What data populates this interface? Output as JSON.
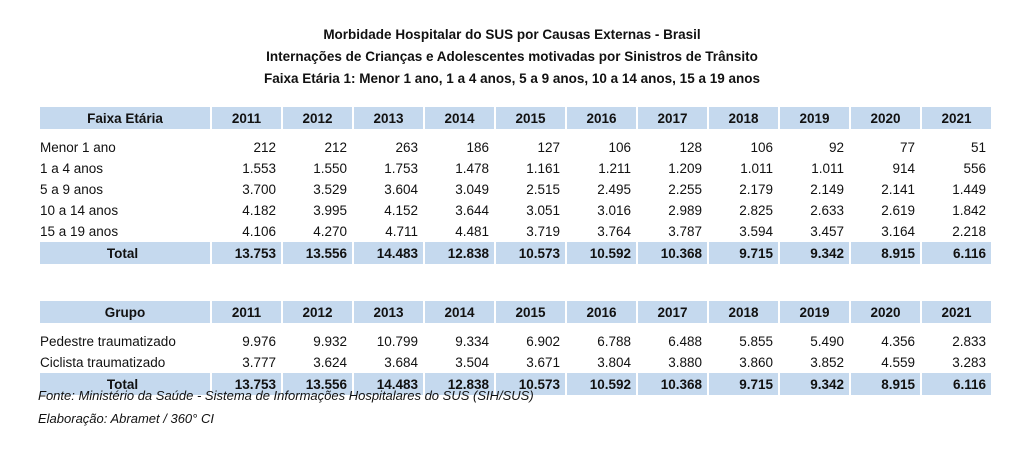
{
  "title": {
    "line1": "Morbidade Hospitalar do SUS por Causas Externas - Brasil",
    "line2": "Internações de Crianças e Adolescentes motivadas por Sinistros de Trânsito",
    "line3": "Faixa Etária 1: Menor 1 ano, 1 a 4 anos, 5 a 9 anos, 10 a 14 anos, 15 a 19 anos"
  },
  "table_age": {
    "header": [
      "Faixa Etária",
      "2011",
      "2012",
      "2013",
      "2014",
      "2015",
      "2016",
      "2017",
      "2018",
      "2019",
      "2020",
      "2021"
    ],
    "rows": [
      [
        "Menor 1 ano",
        "212",
        "212",
        "263",
        "186",
        "127",
        "106",
        "128",
        "106",
        "92",
        "77",
        "51"
      ],
      [
        "1 a 4 anos",
        "1.553",
        "1.550",
        "1.753",
        "1.478",
        "1.161",
        "1.211",
        "1.209",
        "1.011",
        "1.011",
        "914",
        "556"
      ],
      [
        "5 a 9 anos",
        "3.700",
        "3.529",
        "3.604",
        "3.049",
        "2.515",
        "2.495",
        "2.255",
        "2.179",
        "2.149",
        "2.141",
        "1.449"
      ],
      [
        "10 a 14 anos",
        "4.182",
        "3.995",
        "4.152",
        "3.644",
        "3.051",
        "3.016",
        "2.989",
        "2.825",
        "2.633",
        "2.619",
        "1.842"
      ],
      [
        "15 a 19 anos",
        "4.106",
        "4.270",
        "4.711",
        "4.481",
        "3.719",
        "3.764",
        "3.787",
        "3.594",
        "3.457",
        "3.164",
        "2.218"
      ]
    ],
    "total": [
      "Total",
      "13.753",
      "13.556",
      "14.483",
      "12.838",
      "10.573",
      "10.592",
      "10.368",
      "9.715",
      "9.342",
      "8.915",
      "6.116"
    ]
  },
  "table_group": {
    "header": [
      "Grupo",
      "2011",
      "2012",
      "2013",
      "2014",
      "2015",
      "2016",
      "2017",
      "2018",
      "2019",
      "2020",
      "2021"
    ],
    "rows": [
      [
        "Pedestre traumatizado",
        "9.976",
        "9.932",
        "10.799",
        "9.334",
        "6.902",
        "6.788",
        "6.488",
        "5.855",
        "5.490",
        "4.356",
        "2.833"
      ],
      [
        "Ciclista traumatizado",
        "3.777",
        "3.624",
        "3.684",
        "3.504",
        "3.671",
        "3.804",
        "3.880",
        "3.860",
        "3.852",
        "4.559",
        "3.283"
      ]
    ],
    "total": [
      "Total",
      "13.753",
      "13.556",
      "14.483",
      "12.838",
      "10.573",
      "10.592",
      "10.368",
      "9.715",
      "9.342",
      "8.915",
      "6.116"
    ]
  },
  "notes": {
    "source": "Fonte: Ministério da Saúde - Sistema de Informações Hospitalares do SUS (SIH/SUS)",
    "credit": "Elaboração: Abramet / 360° CI"
  }
}
